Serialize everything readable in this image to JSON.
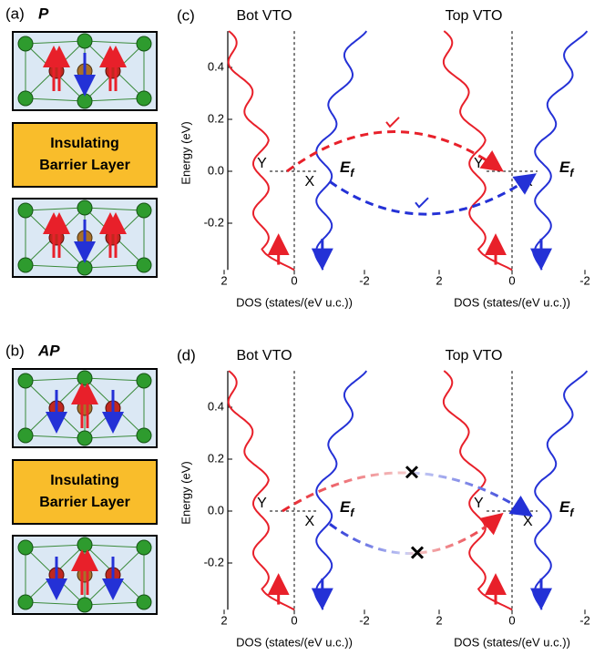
{
  "panels": [
    {
      "label": "(a)",
      "state": "P",
      "barrier": [
        "Insulating",
        "Barrier Layer"
      ]
    },
    {
      "label": "(b)",
      "state": "AP",
      "barrier": [
        "Insulating",
        "Barrier Layer"
      ]
    }
  ],
  "dos_panels": [
    {
      "label": "(c)",
      "left_title": "Bot VTO",
      "right_title": "Top VTO",
      "y_label": "Energy (eV)",
      "y_ticks": [
        "0.4",
        "0.2",
        "0.0",
        "-0.2"
      ],
      "x_ticks": [
        "2",
        "0",
        "-2"
      ],
      "x_label": "DOS (states/(eV u.c.))",
      "points": [
        "Y",
        "X"
      ],
      "fermi": {
        "symbol": "E",
        "subscript": "f"
      }
    },
    {
      "label": "(d)",
      "left_title": "Bot VTO",
      "right_title": "Top VTO",
      "y_label": "Energy (eV)",
      "y_ticks": [
        "0.4",
        "0.2",
        "0.0",
        "-0.2"
      ],
      "x_ticks": [
        "2",
        "0",
        "-2"
      ],
      "x_label": "DOS (states/(eV u.c.))",
      "points": [
        "Y",
        "X"
      ],
      "fermi": {
        "symbol": "E",
        "subscript": "f"
      }
    }
  ]
}
